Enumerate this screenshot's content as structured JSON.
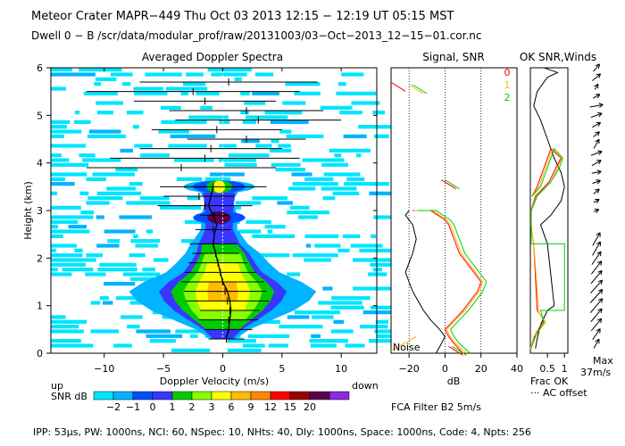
{
  "header": {
    "line1": "Meteor Crater   MAPR−449   Thu Oct 03 2013 12:15 − 12:19 UT 05:15 MST",
    "line2": "Dwell   0 −   B    /scr/data/modular_prof/raw/20131003/03−Oct−2013_12−15−01.cor.nc"
  },
  "footer": {
    "params": "IPP:  53μs,   PW: 1000ns,   NCI:  60,   NSpec: 10,  NHts: 40,   Dly: 1000ns,   Space: 1000ns,   Code: 4,   Npts: 256",
    "fca_filter": "FCA Filter B2   5m/s"
  },
  "colorbar": {
    "label": "SNR dB",
    "ticks": [
      "−2",
      "−1",
      "0",
      "1",
      "2",
      "3",
      "6",
      "9",
      "12",
      "15",
      "20"
    ],
    "colors": [
      "#00e5ff",
      "#00b4ff",
      "#0050ff",
      "#3737ff",
      "#00cc00",
      "#88ff00",
      "#ffff00",
      "#ffbb00",
      "#ff8800",
      "#ff0000",
      "#990000",
      "#5a0050",
      "#8a2be2"
    ]
  },
  "chart_data": [
    {
      "type": "heatmap",
      "title": "Averaged Doppler Spectra",
      "xlabel": "Doppler Velocity (m/s)",
      "ylabel": "Height (km)",
      "xlim": [
        -14.5,
        13
      ],
      "ylim": [
        0,
        6
      ],
      "xticks": [
        -10,
        -5,
        0,
        5,
        10
      ],
      "yticks": [
        0,
        1,
        2,
        3,
        4,
        5,
        6
      ],
      "direction_left": "up",
      "direction_right": "down",
      "core_profile": {
        "height": [
          0.3,
          0.5,
          0.7,
          0.9,
          1.1,
          1.3,
          1.5,
          1.7,
          1.9,
          2.1,
          2.3,
          2.6,
          2.9,
          3.2,
          3.5
        ],
        "half_width": [
          0.5,
          1.5,
          3.0,
          4.5,
          5.5,
          6.0,
          5.0,
          3.5,
          2.8,
          2.2,
          1.6,
          0.9,
          0.9,
          0.6,
          1.2
        ],
        "snr_peak": [
          0,
          1,
          2,
          4,
          6,
          6,
          6,
          5,
          3,
          2,
          1,
          0,
          0,
          -1,
          0
        ]
      },
      "mean_velocity": {
        "height": [
          0.3,
          0.5,
          0.7,
          0.9,
          1.1,
          1.3,
          1.5,
          1.7,
          1.9,
          2.1,
          2.3,
          2.5,
          2.7,
          2.9,
          3.1,
          3.3,
          3.5
        ],
        "velocity": [
          0.3,
          0.5,
          0.6,
          0.7,
          0.6,
          0.4,
          0.0,
          -0.2,
          -0.4,
          -0.6,
          -0.8,
          -0.7,
          -0.5,
          -0.8,
          -1.2,
          -1.0,
          -0.8
        ]
      },
      "error_bars": {
        "height": [
          0.3,
          0.5,
          0.7,
          0.9,
          1.1,
          1.3,
          1.5,
          1.7,
          1.9,
          2.1,
          2.3,
          2.6,
          2.9,
          3.1,
          3.3,
          3.5,
          3.9,
          4.1,
          4.3,
          4.5,
          4.7,
          4.9,
          5.1,
          5.3,
          5.5,
          5.7
        ],
        "center": [
          0.3,
          0.5,
          0.5,
          0.6,
          0.4,
          0.2,
          0.0,
          -0.2,
          -0.4,
          -0.6,
          -0.8,
          -0.8,
          -0.7,
          -1.5,
          -2.0,
          -0.8,
          -3.5,
          -1.5,
          -1.0,
          2.0,
          -0.5,
          3.0,
          2.0,
          -1.5,
          -2.5,
          0.5
        ],
        "half_width": [
          1.5,
          2.0,
          2.5,
          2.5,
          3.5,
          3.5,
          3.5,
          3.0,
          2.5,
          2.0,
          2.0,
          1.5,
          1.2,
          4.0,
          3.0,
          4.5,
          8.0,
          8.0,
          6.0,
          5.0,
          5.5,
          7.0,
          6.5,
          6.0,
          9.0,
          7.5
        ]
      }
    },
    {
      "type": "line",
      "title": "Signal, SNR",
      "xlabel": "dB",
      "xlim": [
        -30,
        40
      ],
      "ylim": [
        0,
        6
      ],
      "xticks": [
        -20,
        0,
        20,
        40
      ],
      "annotation": "Noise",
      "series_labels": [
        "0",
        "1",
        "2"
      ],
      "series": [
        {
          "name": "Signal",
          "color": "#000000",
          "x": [
            -5,
            -2,
            0,
            -3,
            -8,
            -12,
            -15,
            -18,
            -20,
            -22,
            -20,
            -18,
            -16,
            -18,
            -22,
            -20
          ],
          "y": [
            0.0,
            0.2,
            0.35,
            0.5,
            0.7,
            0.9,
            1.1,
            1.3,
            1.5,
            1.7,
            1.9,
            2.1,
            2.4,
            2.7,
            2.9,
            3.0
          ]
        },
        {
          "name": "SNR 0",
          "color": "#ff0000",
          "x": [
            10,
            5,
            2,
            0,
            5,
            10,
            14,
            18,
            20,
            16,
            12,
            8,
            6,
            4,
            2,
            0,
            -2,
            -4,
            -6,
            -8,
            -18
          ],
          "y": [
            0.0,
            0.2,
            0.35,
            0.5,
            0.7,
            0.9,
            1.1,
            1.3,
            1.5,
            1.7,
            1.9,
            2.1,
            2.3,
            2.5,
            2.7,
            2.8,
            2.85,
            2.9,
            2.95,
            3.0,
            3.0
          ]
        },
        {
          "name": "SNR 1",
          "color": "#ffb000",
          "x": [
            12,
            6,
            3,
            1,
            6,
            11,
            15,
            19,
            21,
            17,
            13,
            9,
            7,
            5,
            3,
            1,
            -1,
            -3,
            -5,
            -7,
            -17
          ],
          "y": [
            0.0,
            0.2,
            0.35,
            0.5,
            0.7,
            0.9,
            1.1,
            1.3,
            1.5,
            1.7,
            1.9,
            2.1,
            2.3,
            2.5,
            2.7,
            2.8,
            2.85,
            2.9,
            2.95,
            3.0,
            3.0
          ]
        },
        {
          "name": "SNR 2",
          "color": "#00cc00",
          "x": [
            14,
            8,
            5,
            3,
            8,
            13,
            17,
            21,
            23,
            19,
            15,
            11,
            9,
            7,
            5,
            3,
            1,
            -1,
            -3,
            -5,
            -15
          ],
          "y": [
            0.0,
            0.2,
            0.35,
            0.5,
            0.7,
            0.9,
            1.1,
            1.3,
            1.5,
            1.7,
            1.9,
            2.1,
            2.3,
            2.5,
            2.7,
            2.8,
            2.85,
            2.9,
            2.95,
            3.0,
            3.0
          ]
        }
      ]
    },
    {
      "type": "line",
      "title": "OK SNR,Winds",
      "xlabel": "Frac OK",
      "xnote": "··· AC offset",
      "xlim": [
        0,
        1.1
      ],
      "ylim": [
        0,
        6
      ],
      "xticks": [
        "0.5",
        "1"
      ],
      "xtick_values": [
        0.5,
        1
      ],
      "wind_max_label": "Max",
      "wind_max_value": "37m/s",
      "series": [
        {
          "name": "Frac OK",
          "color": "#000000",
          "x": [
            0.15,
            0.2,
            0.3,
            0.5,
            0.7,
            0.5,
            0.3,
            0.6,
            0.9,
            1.0,
            0.9,
            0.7,
            0.5,
            0.3,
            0.1,
            0.2,
            0.5,
            0.8,
            0.6,
            0.4
          ],
          "y": [
            0.1,
            0.3,
            0.6,
            0.9,
            1.0,
            2.3,
            2.7,
            2.9,
            3.2,
            3.5,
            3.8,
            4.1,
            4.5,
            4.9,
            5.2,
            5.5,
            5.8,
            5.9,
            5.95,
            6.0
          ]
        },
        {
          "name": "SNR 0",
          "color": "#ff0000",
          "x": [
            0.05,
            0.15,
            0.4,
            0.2,
            0.1,
            0.05,
            0.02,
            0.02,
            0.15,
            0.55,
            0.75,
            0.9,
            0.6,
            0.2,
            0.05
          ],
          "y": [
            0.15,
            0.4,
            0.7,
            0.9,
            2.3,
            2.5,
            2.7,
            3.0,
            3.3,
            3.6,
            3.9,
            4.1,
            4.3,
            3.5,
            3.3
          ]
        },
        {
          "name": "SNR 1",
          "color": "#ffb000",
          "x": [
            0.0,
            0.1,
            0.45,
            0.25,
            0.1,
            0.05,
            0.02,
            0.02,
            0.18,
            0.6,
            0.8,
            0.92,
            0.65,
            0.25,
            0.05
          ],
          "y": [
            0.1,
            0.35,
            0.65,
            0.85,
            2.3,
            2.5,
            2.7,
            3.0,
            3.3,
            3.6,
            3.9,
            4.1,
            4.3,
            3.5,
            3.3
          ]
        },
        {
          "name": "SNR 2",
          "color": "#00cc00",
          "x": [
            0.02,
            0.15,
            0.4,
            0.3,
            1.0,
            1.0,
            0.02,
            0.03,
            0.2,
            0.6,
            0.85,
            0.95,
            0.7,
            0.3,
            0.05
          ],
          "y": [
            0.1,
            0.35,
            0.65,
            0.9,
            0.9,
            2.3,
            2.3,
            3.0,
            3.3,
            3.6,
            3.9,
            4.1,
            4.3,
            3.5,
            3.3
          ]
        }
      ],
      "winds": {
        "height": [
          0.2,
          0.4,
          0.6,
          0.8,
          1.0,
          1.2,
          1.4,
          1.6,
          1.8,
          2.0,
          2.2,
          2.4,
          3.0,
          3.2,
          3.4,
          3.6,
          3.8,
          4.0,
          4.2,
          4.4,
          4.6,
          4.8,
          5.0,
          5.2,
          5.4,
          5.6,
          5.8,
          6.0
        ],
        "speed": [
          20,
          25,
          30,
          32,
          35,
          34,
          33,
          32,
          31,
          30,
          30,
          28,
          10,
          12,
          14,
          16,
          18,
          20,
          22,
          20,
          15,
          18,
          22,
          25,
          15,
          12,
          20,
          18
        ],
        "dir_deg": [
          60,
          55,
          50,
          50,
          50,
          48,
          48,
          50,
          52,
          55,
          60,
          60,
          20,
          30,
          40,
          20,
          10,
          30,
          20,
          60,
          40,
          30,
          20,
          10,
          30,
          60,
          40,
          50
        ]
      }
    }
  ]
}
